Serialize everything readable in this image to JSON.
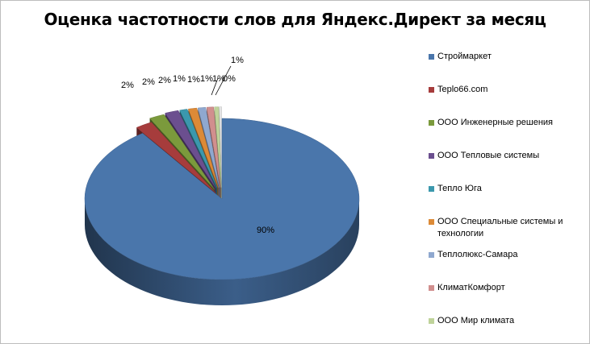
{
  "chart_data": {
    "type": "pie",
    "title": "Оценка частотности слов для Яндекс.Директ за месяц",
    "legend_position": "right",
    "slices": [
      {
        "name": "Строймаркет",
        "value": 90.0,
        "label": "90%",
        "color": "#4a76ab"
      },
      {
        "name": "Teplo66.com",
        "value": 2.0,
        "label": "2%",
        "color": "#a63c3c"
      },
      {
        "name": "ООО Инженерные  решения",
        "value": 1.8,
        "label": "2%",
        "color": "#7b9a3c"
      },
      {
        "name": "ООО Тепловые  системы",
        "value": 1.6,
        "label": "2%",
        "color": "#6b4f8f"
      },
      {
        "name": "Тепло Юга",
        "value": 0.9,
        "label": "1%",
        "color": "#3b98ad"
      },
      {
        "name": "ООО Специальные системы и технологии",
        "value": 1.0,
        "label": "1%",
        "color": "#dc8a37"
      },
      {
        "name": "Теплолюкс-Самара",
        "value": 0.9,
        "label": "1%",
        "color": "#8fa8cf"
      },
      {
        "name": "КлиматКомфорт",
        "value": 0.8,
        "label": "1%",
        "color": "#d18f8e"
      },
      {
        "name": "ООО Мир климата",
        "value": 0.5,
        "label": "1%",
        "color": "#bfd39a"
      },
      {
        "name": "",
        "value": 0.3,
        "label": "0%",
        "color": "#e4e4e4"
      }
    ]
  }
}
